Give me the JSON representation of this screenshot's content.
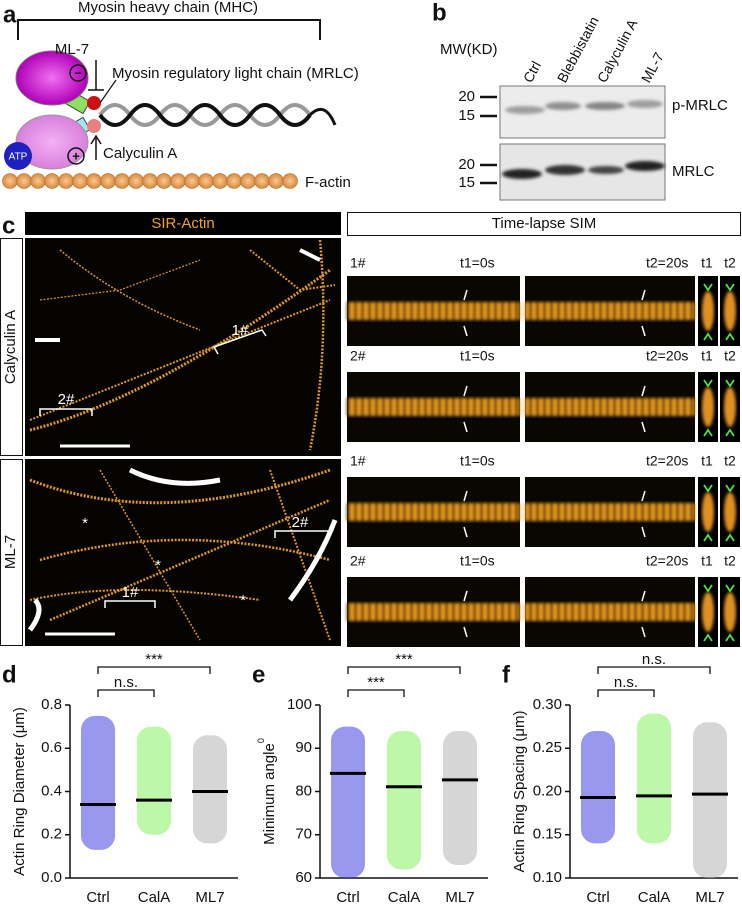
{
  "panel_a": {
    "label": "a",
    "mhc": "Myosin heavy chain (MHC)",
    "ml7": "ML-7",
    "minus": "−",
    "mrlc": "Myosin regulatory light chain (MRLC)",
    "atp": "ATP",
    "plus": "+",
    "calyculin": "Calyculin A",
    "factin": "F-actin"
  },
  "panel_b": {
    "label": "b",
    "mw": "MW(KD)",
    "lanes": [
      "Ctrl",
      "Blebbistatin",
      "Calyculin A",
      "ML-7"
    ],
    "blots": [
      {
        "name": "p-MRLC",
        "markers": [
          20,
          15
        ]
      },
      {
        "name": "MRLC",
        "markers": [
          20,
          15
        ]
      }
    ]
  },
  "panel_c": {
    "label": "c",
    "left_header": "SIR-Actin",
    "right_header": "Time-lapse SIM",
    "rows": [
      {
        "name": "Calyculin A",
        "regions": [
          "1#",
          "2#"
        ]
      },
      {
        "name": "ML-7",
        "regions": [
          "2#",
          "1#"
        ],
        "asterisks": [
          "*",
          "*",
          "*"
        ]
      }
    ],
    "crops": [
      {
        "id": "1#",
        "t1": "t1=0s",
        "t2": "t2=20s",
        "s1": "t1",
        "s2": "t2"
      },
      {
        "id": "2#",
        "t1": "t1=0s",
        "t2": "t2=20s",
        "s1": "t1",
        "s2": "t2"
      },
      {
        "id": "1#",
        "t1": "t1=0s",
        "t2": "t2=20s",
        "s1": "t1",
        "s2": "t2"
      },
      {
        "id": "2#",
        "t1": "t1=0s",
        "t2": "t2=20s",
        "s1": "t1",
        "s2": "t2"
      }
    ]
  },
  "chart_data": [
    {
      "type": "dot",
      "label": "d",
      "ylabel": "Actin Ring Diameter (μm)",
      "categories": [
        "Ctrl",
        "CalA",
        "ML7"
      ],
      "values": [
        0.34,
        0.36,
        0.4
      ],
      "ranges": [
        [
          0.13,
          0.75
        ],
        [
          0.2,
          0.7
        ],
        [
          0.16,
          0.66
        ]
      ],
      "colors": [
        "#4343e0",
        "#86f060",
        "#b4b4b4"
      ],
      "ylim": [
        0,
        0.8
      ],
      "yticks": [
        {
          "value": 0,
          "label": "0.0"
        },
        0.2,
        0.4,
        0.6,
        0.8
      ],
      "comparisons": [
        {
          "pair": [
            0,
            1
          ],
          "label": "n.s."
        },
        {
          "pair": [
            0,
            2
          ],
          "label": "***"
        }
      ]
    },
    {
      "type": "dot",
      "label": "e",
      "ylabel": "Minimum angle",
      "ylabel_unit": "0",
      "categories": [
        "Ctrl",
        "CalA",
        "ML7"
      ],
      "values": [
        84.2,
        81.1,
        82.7
      ],
      "ranges": [
        [
          60,
          95
        ],
        [
          62,
          94
        ],
        [
          63,
          94
        ]
      ],
      "colors": [
        "#4343e0",
        "#86f060",
        "#b4b4b4"
      ],
      "ylim": [
        60,
        100
      ],
      "yticks": [
        60,
        70,
        80,
        90,
        100
      ],
      "comparisons": [
        {
          "pair": [
            0,
            1
          ],
          "label": "***"
        },
        {
          "pair": [
            0,
            2
          ],
          "label": "***"
        }
      ]
    },
    {
      "type": "dot",
      "label": "f",
      "ylabel": "Actin Ring Spacing (μm)",
      "categories": [
        "Ctrl",
        "CalA",
        "ML7"
      ],
      "values": [
        0.193,
        0.195,
        0.197
      ],
      "ranges": [
        [
          0.14,
          0.27
        ],
        [
          0.14,
          0.29
        ],
        [
          0.1,
          0.28
        ]
      ],
      "colors": [
        "#4343e0",
        "#86f060",
        "#b4b4b4"
      ],
      "ylim": [
        0.1,
        0.3
      ],
      "yticks": [
        {
          "value": 0.1,
          "label": "0.10"
        },
        0.15,
        {
          "value": 0.2,
          "label": "0.20"
        },
        0.25,
        {
          "value": 0.3,
          "label": "0.30"
        }
      ],
      "comparisons": [
        {
          "pair": [
            0,
            1
          ],
          "label": "n.s."
        },
        {
          "pair": [
            0,
            2
          ],
          "label": "n.s."
        }
      ]
    }
  ]
}
